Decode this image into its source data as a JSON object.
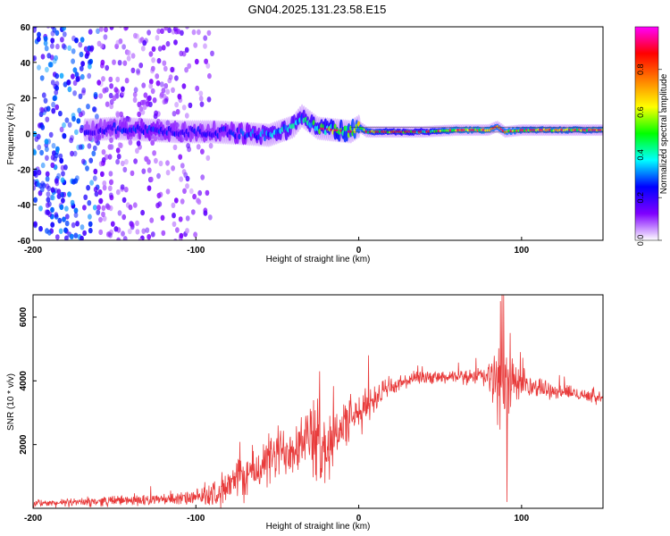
{
  "page_title": "GN04.2025.131.23.58.E15",
  "chart_data": [
    {
      "type": "heatmap",
      "title": "GN04.2025.131.23.58.E15",
      "xlabel": "Height of straight line (km)",
      "ylabel": "Frequency (Hz)",
      "xlim": [
        -200,
        150
      ],
      "ylim": [
        -60,
        60
      ],
      "x_ticks": [
        -200,
        -100,
        0,
        100
      ],
      "x_tick_labels": [
        "-200",
        "-100",
        "0",
        "100"
      ],
      "y_ticks": [
        -60,
        -40,
        -20,
        0,
        20,
        40,
        60
      ],
      "y_tick_labels": [
        "-60",
        "-40",
        "-20",
        "0",
        "20",
        "40",
        "60"
      ],
      "colorbar": {
        "label": "Normalized spectral amplitude",
        "range": [
          0,
          1
        ],
        "ticks": [
          0.0,
          0.2,
          0.4,
          0.6,
          0.8
        ],
        "tick_labels": [
          "0.0",
          "0.2",
          "0.4",
          "0.6",
          "0.8"
        ],
        "colormap": [
          "#ffffff",
          "#7f00ff",
          "#0000ff",
          "#00ffff",
          "#00ff00",
          "#ffff00",
          "#ff8000",
          "#ff0000",
          "#ff00ff"
        ]
      },
      "ridge": {
        "x": [
          -165,
          -150,
          -130,
          -110,
          -90,
          -70,
          -55,
          -40,
          -35,
          -25,
          -15,
          -5,
          0,
          5,
          20,
          40,
          60,
          80,
          85,
          90,
          100,
          150
        ],
        "freq_center": [
          2,
          3,
          2,
          1,
          1,
          0,
          -1,
          4,
          10,
          3,
          2,
          1,
          4,
          1,
          1,
          1,
          2,
          2,
          4,
          1,
          2,
          2
        ],
        "amplitude": [
          0.25,
          0.3,
          0.35,
          0.3,
          0.3,
          0.35,
          0.45,
          0.5,
          0.5,
          0.6,
          0.7,
          0.8,
          0.85,
          0.8,
          0.7,
          0.65,
          0.9,
          0.9,
          0.85,
          0.9,
          0.85,
          0.85
        ]
      },
      "background_noise_x_range": [
        -200,
        -90
      ]
    },
    {
      "type": "line",
      "title": "",
      "xlabel": "Height of straight line (km)",
      "ylabel": "SNR (10 * v/v)",
      "xlim": [
        -200,
        150
      ],
      "ylim": [
        0,
        6700
      ],
      "x_ticks": [
        -200,
        -100,
        0,
        100
      ],
      "x_tick_labels": [
        "-200",
        "-100",
        "0",
        "100"
      ],
      "y_ticks": [
        2000,
        4000,
        6000
      ],
      "y_tick_labels": [
        "2000",
        "4000",
        "6000"
      ],
      "color": "#e83a3a",
      "envelope": {
        "x": [
          -200,
          -180,
          -160,
          -140,
          -120,
          -100,
          -90,
          -80,
          -70,
          -60,
          -50,
          -40,
          -30,
          -25,
          -20,
          -15,
          -10,
          -5,
          0,
          5,
          10,
          20,
          30,
          40,
          50,
          60,
          70,
          80,
          85,
          88,
          90,
          92,
          95,
          100,
          120,
          140,
          150
        ],
        "mean": [
          150,
          170,
          220,
          260,
          280,
          320,
          450,
          700,
          1000,
          1300,
          1700,
          2000,
          2300,
          2000,
          1900,
          2300,
          2600,
          2800,
          2900,
          3200,
          3500,
          3800,
          4000,
          4100,
          4100,
          4100,
          4150,
          4100,
          4000,
          3800,
          3600,
          3800,
          4000,
          3900,
          3700,
          3550,
          3450
        ],
        "spread": [
          150,
          150,
          200,
          200,
          220,
          300,
          500,
          700,
          900,
          1000,
          1100,
          1200,
          1200,
          1800,
          1500,
          1000,
          1000,
          900,
          800,
          700,
          600,
          400,
          300,
          250,
          250,
          250,
          300,
          600,
          1400,
          2000,
          2500,
          1800,
          800,
          500,
          300,
          250,
          250
        ]
      },
      "spikes": [
        {
          "x": 88,
          "y": 6700
        },
        {
          "x": 91,
          "y": 200
        },
        {
          "x": 93,
          "y": 5500
        },
        {
          "x": 87,
          "y": 6500
        },
        {
          "x": 6,
          "y": 4800
        },
        {
          "x": -18,
          "y": 900
        },
        {
          "x": -24,
          "y": 4300
        }
      ]
    }
  ]
}
